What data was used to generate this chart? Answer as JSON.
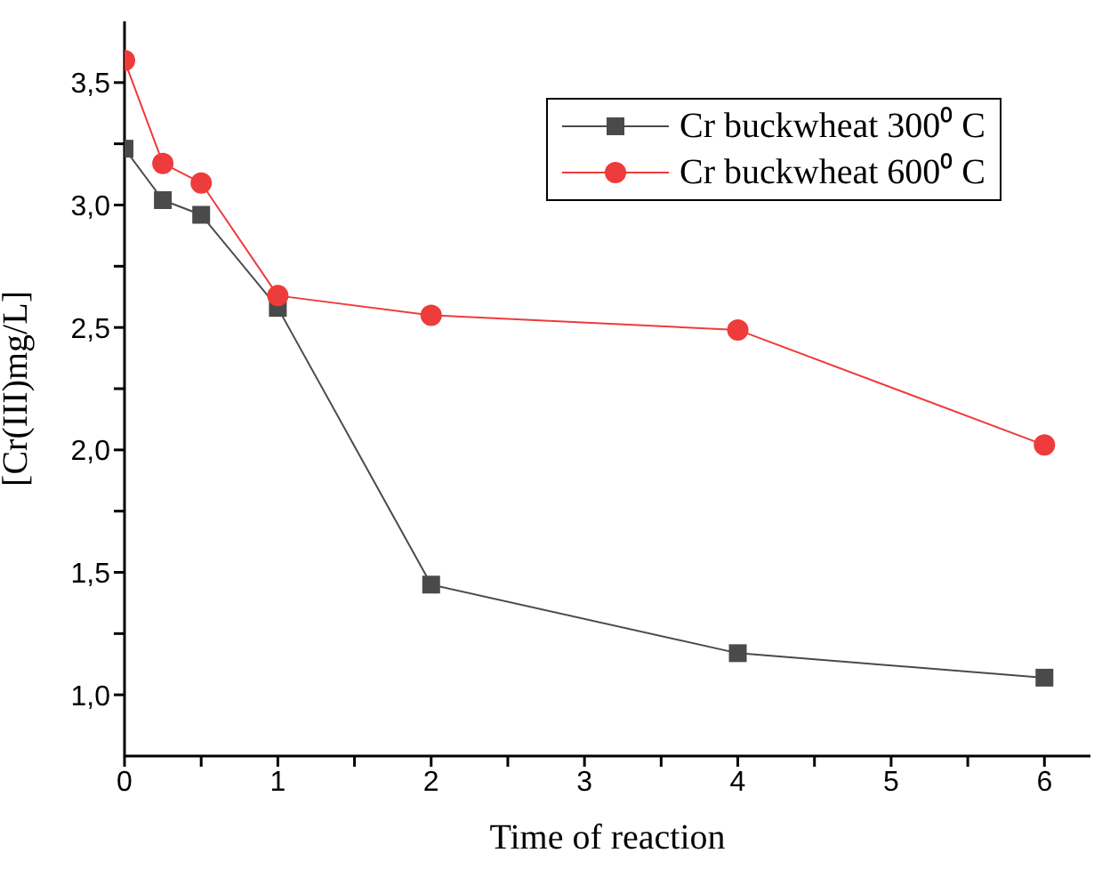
{
  "chart_data": {
    "type": "line",
    "xlabel": "Time of reaction",
    "ylabel": "[Cr(III)mg/L]",
    "x": [
      0,
      0.25,
      0.5,
      1,
      2,
      4,
      6
    ],
    "series": [
      {
        "name": "Cr buckwheat 300⁰ C",
        "color": "#4a4a4a",
        "marker": "square",
        "values": [
          3.23,
          3.02,
          2.96,
          2.58,
          1.45,
          1.17,
          1.07
        ]
      },
      {
        "name": "Cr buckwheat 600⁰ C",
        "color": "#ee3b3b",
        "marker": "circle",
        "values": [
          3.59,
          3.17,
          3.09,
          2.63,
          2.55,
          2.49,
          2.02
        ]
      }
    ],
    "xlim": [
      0,
      6.3
    ],
    "xticks": [
      0,
      {
        "value": 0.5,
        "label": null
      },
      1,
      {
        "value": 1.5,
        "label": null
      },
      2,
      {
        "value": 2.5,
        "label": null
      },
      3,
      {
        "value": 3.5,
        "label": null
      },
      4,
      {
        "value": 4.5,
        "label": null
      },
      5,
      {
        "value": 5.5,
        "label": null
      },
      6
    ],
    "ylim": [
      0.75,
      3.75
    ],
    "yticks": [
      {
        "value": 1,
        "label": "1,0"
      },
      {
        "value": 1.25,
        "label": null
      },
      {
        "value": 1.5,
        "label": "1,5"
      },
      {
        "value": 1.75,
        "label": null
      },
      {
        "value": 2,
        "label": "2,0"
      },
      {
        "value": 2.25,
        "label": null
      },
      {
        "value": 2.5,
        "label": "2,5"
      },
      {
        "value": 2.75,
        "label": null
      },
      {
        "value": 3,
        "label": "3,0"
      },
      {
        "value": 3.25,
        "label": null
      },
      {
        "value": 3.5,
        "label": "3,5"
      }
    ],
    "grid": false,
    "legend": "top right",
    "line_style": "solid"
  }
}
